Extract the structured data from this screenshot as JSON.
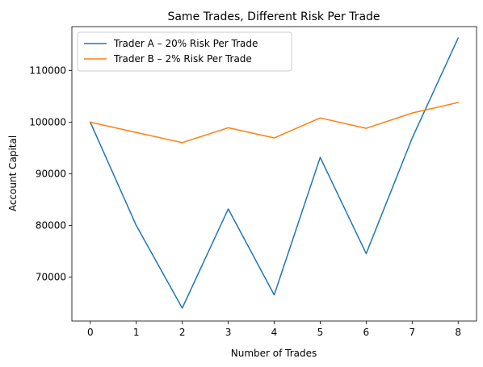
{
  "chart_data": {
    "type": "line",
    "title": "Same Trades, Different Risk Per Trade",
    "xlabel": "Number of Trades",
    "ylabel": "Account Capital",
    "x": [
      0,
      1,
      2,
      3,
      4,
      5,
      6,
      7,
      8
    ],
    "xlim": [
      -0.4,
      8.4
    ],
    "ylim": [
      61500,
      118500
    ],
    "xticks": [
      "0",
      "1",
      "2",
      "3",
      "4",
      "5",
      "6",
      "7",
      "8"
    ],
    "yticks": [
      {
        "value": 70000,
        "label": "70000"
      },
      {
        "value": 80000,
        "label": "80000"
      },
      {
        "value": 90000,
        "label": "90000"
      },
      {
        "value": 100000,
        "label": "100000"
      },
      {
        "value": 110000,
        "label": "110000"
      }
    ],
    "grid": false,
    "legend_position": "upper-left",
    "series": [
      {
        "name": "Trader A – 20% Risk Per Trade",
        "color": "#1f77b4",
        "values": [
          100000,
          80000,
          64000,
          83200,
          66560,
          93184,
          74547,
          96911,
          116293
        ]
      },
      {
        "name": "Trader B – 2% Risk Per Trade",
        "color": "#ff7f0e",
        "values": [
          100000,
          98000,
          96040,
          98921,
          96943,
          100824,
          98807,
          101771,
          103807
        ]
      }
    ]
  }
}
